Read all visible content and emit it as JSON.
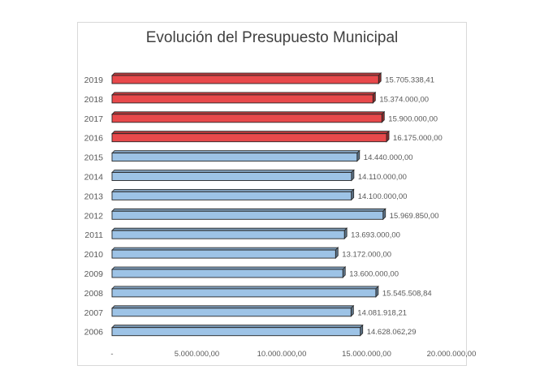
{
  "chart_data": {
    "type": "bar",
    "orientation": "horizontal",
    "title": "Evolución del Presupuesto Municipal",
    "categories": [
      "2019",
      "2018",
      "2017",
      "2016",
      "2015",
      "2014",
      "2013",
      "2012",
      "2011",
      "2010",
      "2009",
      "2008",
      "2007",
      "2006"
    ],
    "values": [
      15705338.41,
      15374000.0,
      15900000.0,
      16175000.0,
      14440000.0,
      14110000.0,
      14100000.0,
      15969850.0,
      13693000.0,
      13172000.0,
      13600000.0,
      15545508.84,
      14081918.21,
      14628062.29
    ],
    "data_labels": [
      "15.705.338,41",
      "15.374.000,00",
      "15.900.000,00",
      "16.175.000,00",
      "14.440.000,00",
      "14.110.000,00",
      "14.100.000,00",
      "15.969.850,00",
      "13.693.000,00",
      "13.172.000,00",
      "13.600.000,00",
      "15.545.508,84",
      "14.081.918,21",
      "14.628.062,29"
    ],
    "bar_colors": [
      "#e8494b",
      "#e8494b",
      "#e8494b",
      "#e8494b",
      "#9dc3e6",
      "#9dc3e6",
      "#9dc3e6",
      "#9dc3e6",
      "#9dc3e6",
      "#9dc3e6",
      "#9dc3e6",
      "#9dc3e6",
      "#9dc3e6",
      "#9dc3e6"
    ],
    "x_ticks": [
      0,
      5000000,
      10000000,
      15000000,
      20000000
    ],
    "x_tick_labels": [
      "-",
      "5.000.000,00",
      "10.000.000,00",
      "15.000.000,00",
      "20.000.000,00"
    ],
    "xlim": [
      0,
      20000000
    ],
    "grid": false,
    "legend": "none"
  }
}
